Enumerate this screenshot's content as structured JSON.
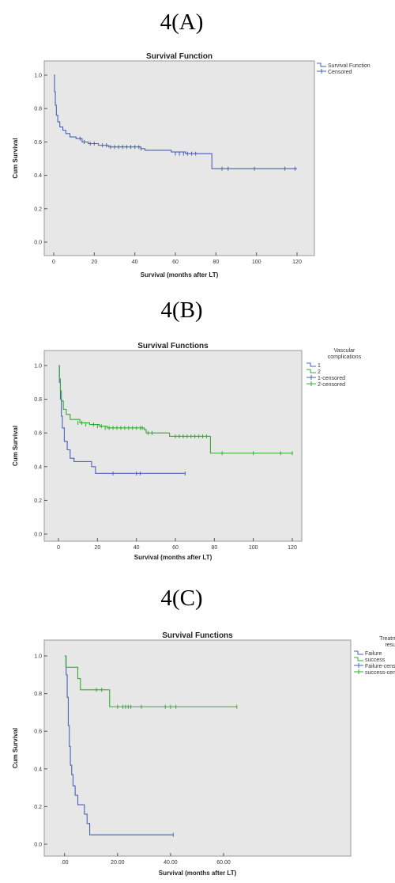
{
  "panels": [
    {
      "label": "4(A)",
      "chart": {
        "type": "line",
        "title": "Survival Function",
        "xlabel": "Survival (months after LT)",
        "ylabel": "Cum Survival",
        "xlim": [
          0,
          120
        ],
        "ylim": [
          0,
          1
        ],
        "xticks": [
          "0",
          "20",
          "40",
          "60",
          "80",
          "100",
          "120"
        ],
        "yticks": [
          "0.0",
          "0.2",
          "0.4",
          "0.6",
          "0.8",
          "1.0"
        ],
        "grid": false,
        "legend_position": "top-right",
        "legend_title": "",
        "legend": [
          {
            "name": "Survival Function",
            "color": "#4a62b8",
            "kind": "step"
          },
          {
            "name": "Censored",
            "color": "#4a62b8",
            "kind": "tick"
          }
        ],
        "series": [
          {
            "color": "#4a62b8",
            "steps": [
              [
                0,
                1.0
              ],
              [
                0.4,
                0.9
              ],
              [
                0.8,
                0.82
              ],
              [
                1.3,
                0.76
              ],
              [
                2,
                0.72
              ],
              [
                3,
                0.69
              ],
              [
                4.5,
                0.67
              ],
              [
                6,
                0.65
              ],
              [
                8,
                0.63
              ],
              [
                11,
                0.62
              ],
              [
                14,
                0.6
              ],
              [
                17,
                0.59
              ],
              [
                22,
                0.58
              ],
              [
                27,
                0.57
              ],
              [
                43,
                0.56
              ],
              [
                45,
                0.55
              ],
              [
                58,
                0.54
              ],
              [
                65,
                0.53
              ],
              [
                78,
                0.44
              ],
              [
                120,
                0.44
              ]
            ],
            "censored": [
              [
                13,
                0.62
              ],
              [
                15,
                0.6
              ],
              [
                18,
                0.59
              ],
              [
                20,
                0.59
              ],
              [
                24,
                0.58
              ],
              [
                26,
                0.58
              ],
              [
                28,
                0.57
              ],
              [
                30,
                0.57
              ],
              [
                32,
                0.57
              ],
              [
                34,
                0.57
              ],
              [
                36,
                0.57
              ],
              [
                38,
                0.57
              ],
              [
                40,
                0.57
              ],
              [
                42,
                0.57
              ],
              [
                43,
                0.56
              ],
              [
                60,
                0.53
              ],
              [
                62,
                0.53
              ],
              [
                64,
                0.53
              ],
              [
                66,
                0.53
              ],
              [
                68,
                0.53
              ],
              [
                70,
                0.53
              ],
              [
                83,
                0.44
              ],
              [
                86,
                0.44
              ],
              [
                99,
                0.44
              ],
              [
                114,
                0.44
              ],
              [
                119,
                0.44
              ]
            ]
          }
        ]
      }
    },
    {
      "label": "4(B)",
      "chart": {
        "type": "line",
        "title": "Survival Functions",
        "xlabel": "Survival (months after LT)",
        "ylabel": "Cum Survival",
        "xlim": [
          0,
          120
        ],
        "ylim": [
          0,
          1
        ],
        "xticks": [
          "0",
          "20",
          "40",
          "60",
          "80",
          "100",
          "120"
        ],
        "yticks": [
          "0.0",
          "0.2",
          "0.4",
          "0.6",
          "0.8",
          "1.0"
        ],
        "grid": false,
        "legend_position": "top-right",
        "legend_title": "Vascular complications",
        "legend": [
          {
            "name": "1",
            "color": "#4a62b8",
            "kind": "step"
          },
          {
            "name": "2",
            "color": "#33aa33",
            "kind": "step"
          },
          {
            "name": "1-censored",
            "color": "#4a62b8",
            "kind": "tick"
          },
          {
            "name": "2-censored",
            "color": "#33aa33",
            "kind": "tick"
          }
        ],
        "series": [
          {
            "color": "#4a62b8",
            "steps": [
              [
                0,
                1.0
              ],
              [
                0.5,
                0.9
              ],
              [
                1,
                0.8
              ],
              [
                1.5,
                0.7
              ],
              [
                2,
                0.63
              ],
              [
                3,
                0.55
              ],
              [
                4.5,
                0.5
              ],
              [
                6,
                0.45
              ],
              [
                8,
                0.43
              ],
              [
                17,
                0.4
              ],
              [
                19,
                0.36
              ],
              [
                65,
                0.36
              ]
            ],
            "censored": [
              [
                28,
                0.36
              ],
              [
                40,
                0.36
              ],
              [
                42,
                0.36
              ],
              [
                65,
                0.36
              ]
            ]
          },
          {
            "color": "#33aa33",
            "steps": [
              [
                0,
                1.0
              ],
              [
                0.5,
                0.92
              ],
              [
                1,
                0.85
              ],
              [
                1.5,
                0.79
              ],
              [
                2.5,
                0.74
              ],
              [
                4,
                0.71
              ],
              [
                6,
                0.68
              ],
              [
                11,
                0.66
              ],
              [
                16,
                0.65
              ],
              [
                21,
                0.64
              ],
              [
                25,
                0.63
              ],
              [
                44,
                0.62
              ],
              [
                45,
                0.6
              ],
              [
                57,
                0.58
              ],
              [
                78,
                0.48
              ],
              [
                120,
                0.48
              ]
            ],
            "censored": [
              [
                10,
                0.66
              ],
              [
                12,
                0.66
              ],
              [
                14,
                0.65
              ],
              [
                18,
                0.65
              ],
              [
                20,
                0.64
              ],
              [
                22,
                0.64
              ],
              [
                24,
                0.63
              ],
              [
                26,
                0.63
              ],
              [
                28,
                0.63
              ],
              [
                30,
                0.63
              ],
              [
                32,
                0.63
              ],
              [
                34,
                0.63
              ],
              [
                36,
                0.63
              ],
              [
                38,
                0.63
              ],
              [
                40,
                0.63
              ],
              [
                42,
                0.63
              ],
              [
                43,
                0.63
              ],
              [
                46,
                0.6
              ],
              [
                48,
                0.6
              ],
              [
                60,
                0.58
              ],
              [
                62,
                0.58
              ],
              [
                64,
                0.58
              ],
              [
                66,
                0.58
              ],
              [
                68,
                0.58
              ],
              [
                70,
                0.58
              ],
              [
                72,
                0.58
              ],
              [
                74,
                0.58
              ],
              [
                76,
                0.58
              ],
              [
                84,
                0.48
              ],
              [
                100,
                0.48
              ],
              [
                114,
                0.48
              ],
              [
                120,
                0.48
              ]
            ]
          }
        ]
      }
    },
    {
      "label": "4(C)",
      "chart": {
        "type": "line",
        "title": "Survival Functions",
        "xlabel": "Survival (months after LT)",
        "ylabel": "Cum Survival",
        "xlim": [
          -2,
          74
        ],
        "ylim": [
          0,
          1
        ],
        "xtick_values": [
          0,
          20,
          40,
          60
        ],
        "xticks": [
          ".00",
          "20.00",
          "40.00",
          "60.00"
        ],
        "yticks": [
          "0.0",
          "0.2",
          "0.4",
          "0.6",
          "0.8",
          "1.0"
        ],
        "grid": false,
        "legend_position": "top-right",
        "legend_title": "Treatment result",
        "legend": [
          {
            "name": "Failure",
            "color": "#4a62b8",
            "kind": "step"
          },
          {
            "name": "success",
            "color": "#33aa33",
            "kind": "step"
          },
          {
            "name": "Failure-censored",
            "color": "#4a62b8",
            "kind": "tick"
          },
          {
            "name": "success-censored",
            "color": "#33aa33",
            "kind": "tick"
          }
        ],
        "series": [
          {
            "color": "#4a62b8",
            "steps": [
              [
                0,
                1.0
              ],
              [
                0.6,
                0.9
              ],
              [
                1,
                0.78
              ],
              [
                1.4,
                0.63
              ],
              [
                1.8,
                0.52
              ],
              [
                2.2,
                0.42
              ],
              [
                2.7,
                0.37
              ],
              [
                3.2,
                0.31
              ],
              [
                4,
                0.26
              ],
              [
                5,
                0.21
              ],
              [
                7.5,
                0.16
              ],
              [
                8.5,
                0.11
              ],
              [
                9.5,
                0.05
              ],
              [
                41,
                0.05
              ]
            ],
            "censored": [
              [
                41,
                0.05
              ]
            ]
          },
          {
            "color": "#33aa33",
            "steps": [
              [
                0,
                1.0
              ],
              [
                0.5,
                0.94
              ],
              [
                5,
                0.88
              ],
              [
                6,
                0.82
              ],
              [
                17,
                0.73
              ],
              [
                65,
                0.73
              ]
            ],
            "censored": [
              [
                12,
                0.82
              ],
              [
                14,
                0.82
              ],
              [
                20,
                0.73
              ],
              [
                22,
                0.73
              ],
              [
                23,
                0.73
              ],
              [
                24,
                0.73
              ],
              [
                25,
                0.73
              ],
              [
                29,
                0.73
              ],
              [
                38,
                0.73
              ],
              [
                40,
                0.73
              ],
              [
                42,
                0.73
              ],
              [
                65,
                0.73
              ]
            ]
          }
        ]
      }
    }
  ]
}
